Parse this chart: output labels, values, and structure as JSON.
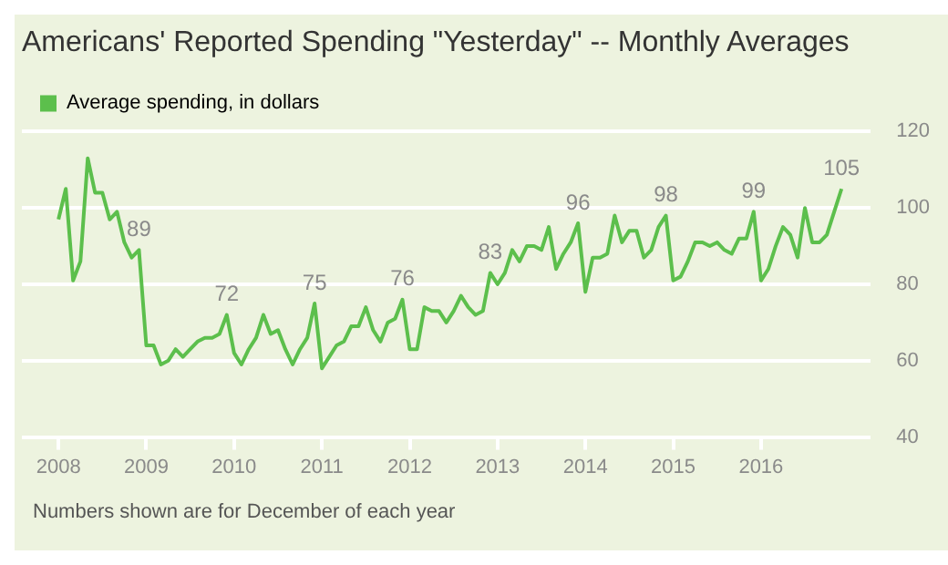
{
  "chart_data": {
    "type": "line",
    "title": "Americans' Reported Spending \"Yesterday\" -- Monthly Averages",
    "x": [
      "2008-01",
      "2008-02",
      "2008-03",
      "2008-04",
      "2008-05",
      "2008-06",
      "2008-07",
      "2008-08",
      "2008-09",
      "2008-10",
      "2008-11",
      "2008-12",
      "2009-01",
      "2009-02",
      "2009-03",
      "2009-04",
      "2009-05",
      "2009-06",
      "2009-07",
      "2009-08",
      "2009-09",
      "2009-10",
      "2009-11",
      "2009-12",
      "2010-01",
      "2010-02",
      "2010-03",
      "2010-04",
      "2010-05",
      "2010-06",
      "2010-07",
      "2010-08",
      "2010-09",
      "2010-10",
      "2010-11",
      "2010-12",
      "2011-01",
      "2011-02",
      "2011-03",
      "2011-04",
      "2011-05",
      "2011-06",
      "2011-07",
      "2011-08",
      "2011-09",
      "2011-10",
      "2011-11",
      "2011-12",
      "2012-01",
      "2012-02",
      "2012-03",
      "2012-04",
      "2012-05",
      "2012-06",
      "2012-07",
      "2012-08",
      "2012-09",
      "2012-10",
      "2012-11",
      "2012-12",
      "2013-01",
      "2013-02",
      "2013-03",
      "2013-04",
      "2013-05",
      "2013-06",
      "2013-07",
      "2013-08",
      "2013-09",
      "2013-10",
      "2013-11",
      "2013-12",
      "2014-01",
      "2014-02",
      "2014-03",
      "2014-04",
      "2014-05",
      "2014-06",
      "2014-07",
      "2014-08",
      "2014-09",
      "2014-10",
      "2014-11",
      "2014-12",
      "2015-01",
      "2015-02",
      "2015-03",
      "2015-04",
      "2015-05",
      "2015-06",
      "2015-07",
      "2015-08",
      "2015-09",
      "2015-10",
      "2015-11",
      "2015-12",
      "2016-01",
      "2016-02",
      "2016-03",
      "2016-04",
      "2016-05",
      "2016-06",
      "2016-07",
      "2016-08",
      "2016-09",
      "2016-10",
      "2016-11",
      "2016-12"
    ],
    "series": [
      {
        "name": "Average spending, in dollars",
        "color": "#5cbf4c",
        "values": [
          97,
          105,
          81,
          86,
          113,
          104,
          104,
          97,
          99,
          91,
          87,
          89,
          64,
          64,
          59,
          60,
          63,
          61,
          63,
          65,
          66,
          66,
          67,
          72,
          62,
          59,
          63,
          66,
          72,
          67,
          68,
          63,
          59,
          63,
          66,
          75,
          58,
          61,
          64,
          65,
          69,
          69,
          74,
          68,
          65,
          70,
          71,
          76,
          63,
          63,
          74,
          73,
          73,
          70,
          73,
          77,
          74,
          72,
          73,
          83,
          80,
          83,
          89,
          86,
          90,
          90,
          89,
          95,
          84,
          88,
          91,
          96,
          78,
          87,
          87,
          88,
          98,
          91,
          94,
          94,
          87,
          89,
          95,
          98,
          81,
          82,
          86,
          91,
          91,
          90,
          91,
          89,
          88,
          92,
          92,
          99,
          81,
          84,
          90,
          95,
          93,
          87,
          100,
          91,
          91,
          93,
          99,
          105
        ],
        "value_labels": [
          null,
          null,
          null,
          null,
          null,
          null,
          null,
          null,
          null,
          null,
          null,
          "89",
          null,
          null,
          null,
          null,
          null,
          null,
          null,
          null,
          null,
          null,
          null,
          "72",
          null,
          null,
          null,
          null,
          null,
          null,
          null,
          null,
          null,
          null,
          null,
          "75",
          null,
          null,
          null,
          null,
          null,
          null,
          null,
          null,
          null,
          null,
          null,
          "76",
          null,
          null,
          null,
          null,
          null,
          null,
          null,
          null,
          null,
          null,
          null,
          "83",
          null,
          null,
          null,
          null,
          null,
          null,
          null,
          null,
          null,
          null,
          null,
          "96",
          null,
          null,
          null,
          null,
          null,
          null,
          null,
          null,
          null,
          null,
          null,
          "98",
          null,
          null,
          null,
          null,
          null,
          null,
          null,
          null,
          null,
          null,
          null,
          "99",
          null,
          null,
          null,
          null,
          null,
          null,
          null,
          null,
          null,
          null,
          null,
          "105"
        ]
      }
    ],
    "xlim": [
      "2007-08",
      "2017-04"
    ],
    "xticks": [
      "2008",
      "2009",
      "2010",
      "2011",
      "2012",
      "2013",
      "2014",
      "2015",
      "2016"
    ],
    "ylim": [
      40,
      120
    ],
    "yticks": [
      40,
      60,
      80,
      100,
      120
    ],
    "grid": "y",
    "legend": "top left",
    "marker": "none",
    "line_style": "solid",
    "annotations": [
      "Numbers shown are for December of each year"
    ]
  }
}
